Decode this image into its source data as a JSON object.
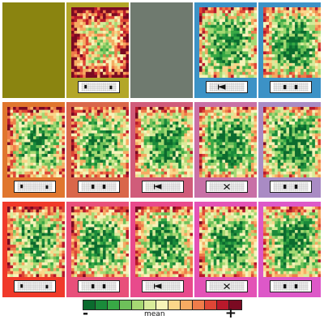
{
  "legend": {
    "minus_label": "-",
    "mid_label": "mean",
    "plus_label": "+",
    "colors": [
      "#0b6b2e",
      "#1a8a3a",
      "#38a845",
      "#6ec05a",
      "#a6d873",
      "#d8eb9a",
      "#f7f3b8",
      "#fad68a",
      "#f6ab62",
      "#ef7c4a",
      "#de4636",
      "#b8192b",
      "#7b0a22"
    ]
  },
  "empty_cell_colors": [
    "#8a8410",
    "#6f7a6f"
  ],
  "panels": [
    {
      "row": 0,
      "col": 1,
      "frame": "#b3a628",
      "density": 0.55,
      "glyph": "dots"
    },
    {
      "row": 0,
      "col": 3,
      "frame": "#3c92c6",
      "density": 0.22,
      "glyph": "tri"
    },
    {
      "row": 0,
      "col": 4,
      "frame": "#3c92c6",
      "density": 0.2,
      "glyph": "pair"
    },
    {
      "row": 1,
      "col": 0,
      "frame": "#e0762e",
      "density": 0.3,
      "glyph": "dots"
    },
    {
      "row": 1,
      "col": 1,
      "frame": "#d9674a",
      "density": 0.28,
      "glyph": "pair"
    },
    {
      "row": 1,
      "col": 2,
      "frame": "#d05c7a",
      "density": 0.22,
      "glyph": "tri"
    },
    {
      "row": 1,
      "col": 3,
      "frame": "#c870a6",
      "density": 0.2,
      "glyph": "cross"
    },
    {
      "row": 1,
      "col": 4,
      "frame": "#a98bc4",
      "density": 0.18,
      "glyph": "pair"
    },
    {
      "row": 2,
      "col": 0,
      "frame": "#f03a2a",
      "density": 0.3,
      "glyph": "dots"
    },
    {
      "row": 2,
      "col": 1,
      "frame": "#e8507a",
      "density": 0.26,
      "glyph": "pair"
    },
    {
      "row": 2,
      "col": 2,
      "frame": "#e84a8c",
      "density": 0.24,
      "glyph": "tri"
    },
    {
      "row": 2,
      "col": 3,
      "frame": "#e352b6",
      "density": 0.22,
      "glyph": "cross"
    },
    {
      "row": 2,
      "col": 4,
      "frame": "#dd58c8",
      "density": 0.2,
      "glyph": "pair"
    }
  ]
}
